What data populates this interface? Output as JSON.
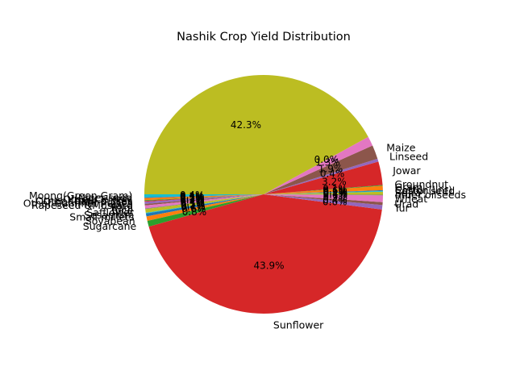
{
  "chart_data": {
    "type": "pie",
    "title": "Nashik Crop Yield Distribution",
    "start_angle_deg": 180,
    "direction": "counterclockwise",
    "autopct_format": "%1.1f%%",
    "slices": [
      {
        "label": "Moong(Green Gram)",
        "value": 0.4,
        "color": "#17becf"
      },
      {
        "label": "Niger seed",
        "value": 0.1,
        "color": "#1f77b4"
      },
      {
        "label": "Other Cereals",
        "value": 0.3,
        "color": "#ff7f0e"
      },
      {
        "label": "Other Kharif pulses",
        "value": 0.1,
        "color": "#2ca02c"
      },
      {
        "label": "Other Rabi pulses",
        "value": 0.1,
        "color": "#d62728"
      },
      {
        "label": "Other Summer Pulses",
        "value": 0.3,
        "color": "#9467bd"
      },
      {
        "label": "Rapeseed &Mustard",
        "value": 0.2,
        "color": "#8c564b"
      },
      {
        "label": "Ragi",
        "value": 0.4,
        "color": "#e377c2"
      },
      {
        "label": "Rice",
        "value": 0.1,
        "color": "#7f7f7f"
      },
      {
        "label": "Safflower",
        "value": 0.5,
        "color": "#bcbd22"
      },
      {
        "label": "Sesamum",
        "value": 0.1,
        "color": "#17becf"
      },
      {
        "label": "Small millets",
        "value": 0.4,
        "color": "#1f77b4"
      },
      {
        "label": "Soyabean",
        "value": 0.6,
        "color": "#ff7f0e"
      },
      {
        "label": "Sugarcane",
        "value": 0.8,
        "color": "#2ca02c"
      },
      {
        "label": "Sunflower",
        "value": 43.9,
        "color": "#d62728"
      },
      {
        "label": "Tur",
        "value": 0.6,
        "color": "#9467bd"
      },
      {
        "label": "Urad",
        "value": 0.4,
        "color": "#8c564b"
      },
      {
        "label": "Wheat",
        "value": 0.9,
        "color": "#e377c2"
      },
      {
        "label": "other oilseeds",
        "value": 0.1,
        "color": "#7f7f7f"
      },
      {
        "label": "Bajra",
        "value": 0.4,
        "color": "#bcbd22"
      },
      {
        "label": "Castor seed",
        "value": 0.1,
        "color": "#17becf"
      },
      {
        "label": "Cotton(lint)",
        "value": 0.1,
        "color": "#1f77b4"
      },
      {
        "label": "Gram",
        "value": 0.6,
        "color": "#ff7f0e"
      },
      {
        "label": "Groundnut",
        "value": 0.1,
        "color": "#2ca02c"
      },
      {
        "label": "Jowar",
        "value": 3.2,
        "color": "#d62728"
      },
      {
        "label": "Linseed",
        "value": 0.4,
        "color": "#9467bd"
      },
      {
        "label": "Maize",
        "value": 1.9,
        "color": "#8c564b"
      },
      {
        "label": "",
        "value": 1.3,
        "color": "#e377c2"
      },
      {
        "label": "",
        "value": 0.0,
        "color": "#7f7f7f"
      },
      {
        "label": "",
        "value": 42.3,
        "color": "#bcbd22"
      }
    ]
  }
}
